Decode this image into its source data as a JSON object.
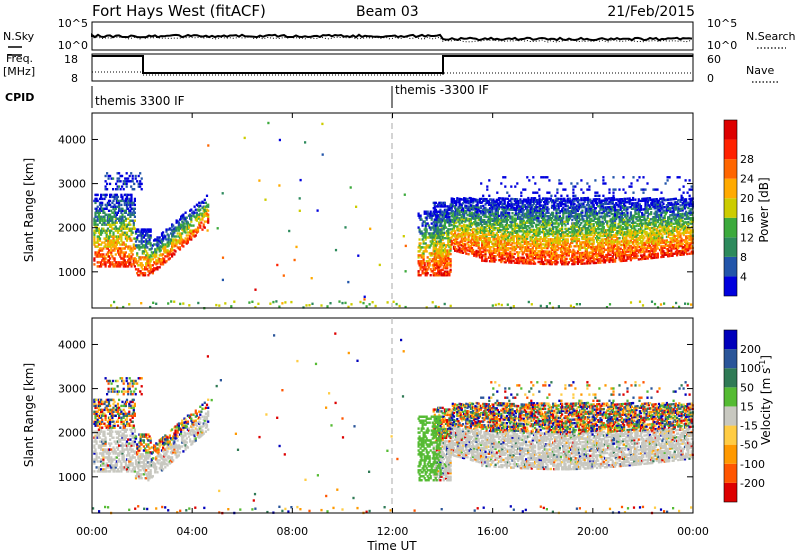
{
  "header": {
    "station": "Fort Hays West (fitACF)",
    "beam": "Beam 03",
    "date": "21/Feb/2015"
  },
  "noise_panel": {
    "left_label": "N.Sky",
    "right_label": "N.Search",
    "left_ticks": [
      "10^5",
      "10^0"
    ],
    "right_ticks": [
      "10^5",
      "10^0"
    ]
  },
  "freq_panel": {
    "left_label_1": "Freq.",
    "left_label_2": "[MHz]",
    "right_label": "Nave",
    "left_ticks": [
      "18",
      "8"
    ],
    "right_ticks": [
      "60",
      "0"
    ]
  },
  "cpid": {
    "label": "CPID",
    "segments": [
      {
        "name": "themis 3300 IF",
        "start_hour": 0
      },
      {
        "name": "themis -3300 IF",
        "start_hour": 12
      }
    ]
  },
  "chart_data": [
    {
      "type": "heatmap",
      "title": "Power",
      "xlabel": "",
      "ylabel": "Slant Range [km]",
      "xlim_hours": [
        0,
        24
      ],
      "ylim": [
        180,
        4600
      ],
      "yticks": [
        "1000",
        "2000",
        "3000",
        "4000"
      ],
      "colorbar_label": "Power [dB]",
      "colorbar_ticks": [
        "4",
        "8",
        "12",
        "16",
        "20",
        "24",
        "28"
      ],
      "colors": [
        "#0000dd",
        "#2255aa",
        "#2d8a5c",
        "#3caa3c",
        "#cccc00",
        "#ffaa00",
        "#ff6600",
        "#ff2200",
        "#dd0000"
      ]
    },
    {
      "type": "heatmap",
      "title": "Velocity",
      "xlabel": "Time UT",
      "ylabel": "Slant Range [km]",
      "xlim_hours": [
        0,
        24
      ],
      "ylim": [
        180,
        4600
      ],
      "yticks": [
        "1000",
        "2000",
        "3000",
        "4000"
      ],
      "xticks": [
        "00:00",
        "04:00",
        "08:00",
        "12:00",
        "16:00",
        "20:00",
        "00:00"
      ],
      "colorbar_label": "Velocity [m s",
      "colorbar_label_sup": "-1",
      "colorbar_label_end": "]",
      "colorbar_ticks": [
        "200",
        "100",
        "50",
        "15",
        "-15",
        "-50",
        "-100",
        "-200"
      ],
      "colors": [
        "#0000bb",
        "#2a5599",
        "#2f7a55",
        "#55bb33",
        "#c8c8c0",
        "#ffcc44",
        "#ff9900",
        "#ff5500",
        "#dd0000"
      ],
      "ground_scatter_color": "#c8c8c0"
    }
  ]
}
